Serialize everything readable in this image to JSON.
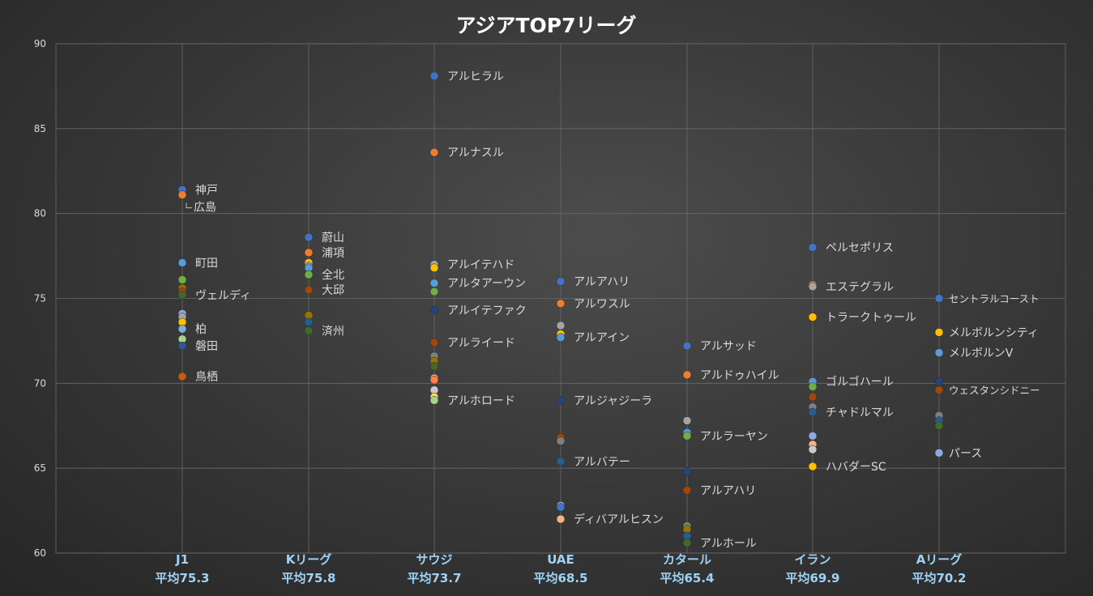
{
  "chart_data": {
    "type": "scatter",
    "title": "アジアTOP7リーグ",
    "ylim": [
      60,
      90
    ],
    "yticks": [
      60,
      65,
      70,
      75,
      80,
      85,
      90
    ],
    "grid": true,
    "categories": [
      {
        "name": "J1",
        "avg": "平均75.3"
      },
      {
        "name": "Kリーグ",
        "avg": "平均75.8"
      },
      {
        "name": "サウジ",
        "avg": "平均73.7"
      },
      {
        "name": "UAE",
        "avg": "平均68.5"
      },
      {
        "name": "カタール",
        "avg": "平均65.4"
      },
      {
        "name": "イラン",
        "avg": "平均69.9"
      },
      {
        "name": "Aリーグ",
        "avg": "平均70.2"
      }
    ],
    "points": [
      {
        "c": 0,
        "y": 81.4,
        "color": "#4472c4",
        "label": "神戸"
      },
      {
        "c": 0,
        "y": 81.1,
        "color": "#ed7d31",
        "label": "広島"
      },
      {
        "c": 0,
        "y": 77.2,
        "color": "#264478"
      },
      {
        "c": 0,
        "y": 77.1,
        "color": "#5b9bd5",
        "label": "町田"
      },
      {
        "c": 0,
        "y": 76.1,
        "color": "#70ad47"
      },
      {
        "c": 0,
        "y": 75.6,
        "color": "#997300"
      },
      {
        "c": 0,
        "y": 75.4,
        "color": "#9e480e"
      },
      {
        "c": 0,
        "y": 75.2,
        "color": "#43682b",
        "label": "ヴェルディ"
      },
      {
        "c": 0,
        "y": 74.1,
        "color": "#8faadc"
      },
      {
        "c": 0,
        "y": 73.9,
        "color": "#a5a5a5"
      },
      {
        "c": 0,
        "y": 73.6,
        "color": "#ffc000"
      },
      {
        "c": 0,
        "y": 73.2,
        "color": "#7cafdd",
        "label": "柏"
      },
      {
        "c": 0,
        "y": 72.6,
        "color": "#a9d18e"
      },
      {
        "c": 0,
        "y": 72.2,
        "color": "#2f5597",
        "label": "磐田"
      },
      {
        "c": 0,
        "y": 70.4,
        "color": "#c55a11",
        "label": "鳥栖"
      },
      {
        "c": 1,
        "y": 78.6,
        "color": "#4472c4",
        "label": "蔚山"
      },
      {
        "c": 1,
        "y": 77.7,
        "color": "#ed7d31",
        "label": "浦項"
      },
      {
        "c": 1,
        "y": 77.1,
        "color": "#ffc000"
      },
      {
        "c": 1,
        "y": 76.9,
        "color": "#a5a5a5"
      },
      {
        "c": 1,
        "y": 76.8,
        "color": "#5b9bd5"
      },
      {
        "c": 1,
        "y": 76.4,
        "color": "#70ad47",
        "label": "全北"
      },
      {
        "c": 1,
        "y": 75.5,
        "color": "#9e480e",
        "label": "大邱"
      },
      {
        "c": 1,
        "y": 74.0,
        "color": "#997300"
      },
      {
        "c": 1,
        "y": 73.6,
        "color": "#255e91"
      },
      {
        "c": 1,
        "y": 73.1,
        "color": "#43682b",
        "label": "済州"
      },
      {
        "c": 2,
        "y": 88.1,
        "color": "#4472c4",
        "label": "アルヒラル"
      },
      {
        "c": 2,
        "y": 83.6,
        "color": "#ed7d31",
        "label": "アルナスル"
      },
      {
        "c": 2,
        "y": 77.0,
        "color": "#a5a5a5",
        "label": "アルイテハド"
      },
      {
        "c": 2,
        "y": 76.8,
        "color": "#ffc000"
      },
      {
        "c": 2,
        "y": 75.9,
        "color": "#5b9bd5",
        "label": "アルタアーウン"
      },
      {
        "c": 2,
        "y": 75.4,
        "color": "#70ad47"
      },
      {
        "c": 2,
        "y": 74.3,
        "color": "#264478",
        "label": "アルイテファク"
      },
      {
        "c": 2,
        "y": 72.4,
        "color": "#9e480e",
        "label": "アルライード"
      },
      {
        "c": 2,
        "y": 71.6,
        "color": "#7f7f7f"
      },
      {
        "c": 2,
        "y": 71.3,
        "color": "#997300"
      },
      {
        "c": 2,
        "y": 71.0,
        "color": "#43682b"
      },
      {
        "c": 2,
        "y": 70.3,
        "color": "#f4b183"
      },
      {
        "c": 2,
        "y": 70.2,
        "color": "#ff7f50"
      },
      {
        "c": 2,
        "y": 69.6,
        "color": "#c9c9c9"
      },
      {
        "c": 2,
        "y": 69.2,
        "color": "#ffd966"
      },
      {
        "c": 2,
        "y": 69.0,
        "color": "#a9d18e",
        "label": "アルホロード"
      },
      {
        "c": 3,
        "y": 76.0,
        "color": "#4472c4",
        "label": "アルアハリ"
      },
      {
        "c": 3,
        "y": 74.7,
        "color": "#ed7d31",
        "label": "アルワスル"
      },
      {
        "c": 3,
        "y": 73.4,
        "color": "#a5a5a5"
      },
      {
        "c": 3,
        "y": 72.9,
        "color": "#ffc000"
      },
      {
        "c": 3,
        "y": 72.7,
        "color": "#5b9bd5",
        "label": "アルアイン"
      },
      {
        "c": 3,
        "y": 69.0,
        "color": "#264478",
        "label": "アルジャジーラ"
      },
      {
        "c": 3,
        "y": 66.8,
        "color": "#9e480e"
      },
      {
        "c": 3,
        "y": 66.6,
        "color": "#7f7f7f"
      },
      {
        "c": 3,
        "y": 65.4,
        "color": "#255e91",
        "label": "アルバテー"
      },
      {
        "c": 3,
        "y": 62.8,
        "color": "#8faadc"
      },
      {
        "c": 3,
        "y": 62.7,
        "color": "#4472c4"
      },
      {
        "c": 3,
        "y": 62.0,
        "color": "#f4b183",
        "label": "ディバアルヒスン"
      },
      {
        "c": 4,
        "y": 72.2,
        "color": "#4472c4",
        "label": "アルサッド"
      },
      {
        "c": 4,
        "y": 70.5,
        "color": "#ed7d31",
        "label": "アルドゥハイル"
      },
      {
        "c": 4,
        "y": 67.8,
        "color": "#a5a5a5"
      },
      {
        "c": 4,
        "y": 67.1,
        "color": "#5b9bd5"
      },
      {
        "c": 4,
        "y": 66.9,
        "color": "#70ad47",
        "label": "アルラーヤン"
      },
      {
        "c": 4,
        "y": 64.8,
        "color": "#264478"
      },
      {
        "c": 4,
        "y": 63.7,
        "color": "#9e480e",
        "label": "アルアハリ"
      },
      {
        "c": 4,
        "y": 61.6,
        "color": "#7f7f7f"
      },
      {
        "c": 4,
        "y": 61.4,
        "color": "#997300"
      },
      {
        "c": 4,
        "y": 61.0,
        "color": "#255e91"
      },
      {
        "c": 4,
        "y": 60.6,
        "color": "#43682b",
        "label": "アルホール"
      },
      {
        "c": 5,
        "y": 78.0,
        "color": "#4472c4",
        "label": "ペルセポリス"
      },
      {
        "c": 5,
        "y": 75.8,
        "color": "#ed7d31"
      },
      {
        "c": 5,
        "y": 75.7,
        "color": "#a5a5a5",
        "label": "エステグラル"
      },
      {
        "c": 5,
        "y": 73.9,
        "color": "#ffc000",
        "label": "トラークトゥール"
      },
      {
        "c": 5,
        "y": 70.1,
        "color": "#5b9bd5",
        "label": "ゴルゴハール"
      },
      {
        "c": 5,
        "y": 69.8,
        "color": "#70ad47"
      },
      {
        "c": 5,
        "y": 69.2,
        "color": "#9e480e"
      },
      {
        "c": 5,
        "y": 68.6,
        "color": "#7f7f7f"
      },
      {
        "c": 5,
        "y": 68.3,
        "color": "#255e91",
        "label": "チャドルマル"
      },
      {
        "c": 5,
        "y": 66.9,
        "color": "#8faadc"
      },
      {
        "c": 5,
        "y": 66.4,
        "color": "#f4b183"
      },
      {
        "c": 5,
        "y": 66.1,
        "color": "#c9c9c9"
      },
      {
        "c": 5,
        "y": 65.1,
        "color": "#ffc000",
        "label": "ハバダーSC"
      },
      {
        "c": 6,
        "y": 75.0,
        "color": "#4472c4",
        "label": "セントラルコースト"
      },
      {
        "c": 6,
        "y": 73.0,
        "color": "#ffc000",
        "label": "メルボルンシティ"
      },
      {
        "c": 6,
        "y": 71.8,
        "color": "#5b9bd5",
        "label": "メルボルンV"
      },
      {
        "c": 6,
        "y": 70.1,
        "color": "#264478"
      },
      {
        "c": 6,
        "y": 69.6,
        "color": "#9e480e",
        "label": "ウェスタンシドニー"
      },
      {
        "c": 6,
        "y": 68.1,
        "color": "#7f7f7f"
      },
      {
        "c": 6,
        "y": 67.8,
        "color": "#255e91"
      },
      {
        "c": 6,
        "y": 67.5,
        "color": "#43682b"
      },
      {
        "c": 6,
        "y": 65.9,
        "color": "#8faadc",
        "label": "パース"
      }
    ]
  }
}
